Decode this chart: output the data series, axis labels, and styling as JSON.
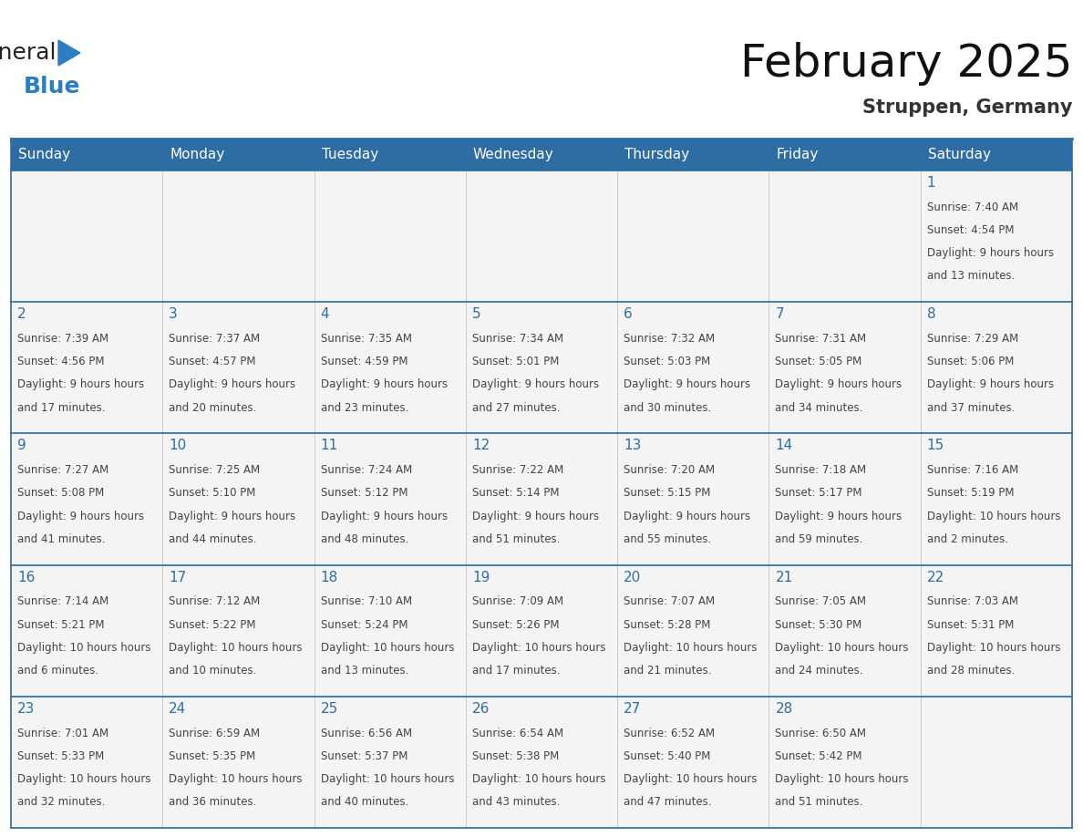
{
  "title": "February 2025",
  "subtitle": "Struppen, Germany",
  "header_bg": "#2E6DA4",
  "header_text_color": "#FFFFFF",
  "cell_bg": "#F4F4F4",
  "day_number_color": "#2E6DA4",
  "text_color": "#444444",
  "border_color": "#2E6DA4",
  "thin_border_color": "#BBBBBB",
  "days_of_week": [
    "Sunday",
    "Monday",
    "Tuesday",
    "Wednesday",
    "Thursday",
    "Friday",
    "Saturday"
  ],
  "logo_general_color": "#222222",
  "logo_blue_color": "#2B7EC1",
  "title_fontsize": 36,
  "subtitle_fontsize": 15,
  "header_fontsize": 11,
  "day_num_fontsize": 11,
  "cell_fontsize": 8.5,
  "weeks": [
    [
      {
        "day": null,
        "data": null
      },
      {
        "day": null,
        "data": null
      },
      {
        "day": null,
        "data": null
      },
      {
        "day": null,
        "data": null
      },
      {
        "day": null,
        "data": null
      },
      {
        "day": null,
        "data": null
      },
      {
        "day": 1,
        "data": {
          "sunrise": "7:40 AM",
          "sunset": "4:54 PM",
          "daylight": "9 hours and 13 minutes."
        }
      }
    ],
    [
      {
        "day": 2,
        "data": {
          "sunrise": "7:39 AM",
          "sunset": "4:56 PM",
          "daylight": "9 hours and 17 minutes."
        }
      },
      {
        "day": 3,
        "data": {
          "sunrise": "7:37 AM",
          "sunset": "4:57 PM",
          "daylight": "9 hours and 20 minutes."
        }
      },
      {
        "day": 4,
        "data": {
          "sunrise": "7:35 AM",
          "sunset": "4:59 PM",
          "daylight": "9 hours and 23 minutes."
        }
      },
      {
        "day": 5,
        "data": {
          "sunrise": "7:34 AM",
          "sunset": "5:01 PM",
          "daylight": "9 hours and 27 minutes."
        }
      },
      {
        "day": 6,
        "data": {
          "sunrise": "7:32 AM",
          "sunset": "5:03 PM",
          "daylight": "9 hours and 30 minutes."
        }
      },
      {
        "day": 7,
        "data": {
          "sunrise": "7:31 AM",
          "sunset": "5:05 PM",
          "daylight": "9 hours and 34 minutes."
        }
      },
      {
        "day": 8,
        "data": {
          "sunrise": "7:29 AM",
          "sunset": "5:06 PM",
          "daylight": "9 hours and 37 minutes."
        }
      }
    ],
    [
      {
        "day": 9,
        "data": {
          "sunrise": "7:27 AM",
          "sunset": "5:08 PM",
          "daylight": "9 hours and 41 minutes."
        }
      },
      {
        "day": 10,
        "data": {
          "sunrise": "7:25 AM",
          "sunset": "5:10 PM",
          "daylight": "9 hours and 44 minutes."
        }
      },
      {
        "day": 11,
        "data": {
          "sunrise": "7:24 AM",
          "sunset": "5:12 PM",
          "daylight": "9 hours and 48 minutes."
        }
      },
      {
        "day": 12,
        "data": {
          "sunrise": "7:22 AM",
          "sunset": "5:14 PM",
          "daylight": "9 hours and 51 minutes."
        }
      },
      {
        "day": 13,
        "data": {
          "sunrise": "7:20 AM",
          "sunset": "5:15 PM",
          "daylight": "9 hours and 55 minutes."
        }
      },
      {
        "day": 14,
        "data": {
          "sunrise": "7:18 AM",
          "sunset": "5:17 PM",
          "daylight": "9 hours and 59 minutes."
        }
      },
      {
        "day": 15,
        "data": {
          "sunrise": "7:16 AM",
          "sunset": "5:19 PM",
          "daylight": "10 hours and 2 minutes."
        }
      }
    ],
    [
      {
        "day": 16,
        "data": {
          "sunrise": "7:14 AM",
          "sunset": "5:21 PM",
          "daylight": "10 hours and 6 minutes."
        }
      },
      {
        "day": 17,
        "data": {
          "sunrise": "7:12 AM",
          "sunset": "5:22 PM",
          "daylight": "10 hours and 10 minutes."
        }
      },
      {
        "day": 18,
        "data": {
          "sunrise": "7:10 AM",
          "sunset": "5:24 PM",
          "daylight": "10 hours and 13 minutes."
        }
      },
      {
        "day": 19,
        "data": {
          "sunrise": "7:09 AM",
          "sunset": "5:26 PM",
          "daylight": "10 hours and 17 minutes."
        }
      },
      {
        "day": 20,
        "data": {
          "sunrise": "7:07 AM",
          "sunset": "5:28 PM",
          "daylight": "10 hours and 21 minutes."
        }
      },
      {
        "day": 21,
        "data": {
          "sunrise": "7:05 AM",
          "sunset": "5:30 PM",
          "daylight": "10 hours and 24 minutes."
        }
      },
      {
        "day": 22,
        "data": {
          "sunrise": "7:03 AM",
          "sunset": "5:31 PM",
          "daylight": "10 hours and 28 minutes."
        }
      }
    ],
    [
      {
        "day": 23,
        "data": {
          "sunrise": "7:01 AM",
          "sunset": "5:33 PM",
          "daylight": "10 hours and 32 minutes."
        }
      },
      {
        "day": 24,
        "data": {
          "sunrise": "6:59 AM",
          "sunset": "5:35 PM",
          "daylight": "10 hours and 36 minutes."
        }
      },
      {
        "day": 25,
        "data": {
          "sunrise": "6:56 AM",
          "sunset": "5:37 PM",
          "daylight": "10 hours and 40 minutes."
        }
      },
      {
        "day": 26,
        "data": {
          "sunrise": "6:54 AM",
          "sunset": "5:38 PM",
          "daylight": "10 hours and 43 minutes."
        }
      },
      {
        "day": 27,
        "data": {
          "sunrise": "6:52 AM",
          "sunset": "5:40 PM",
          "daylight": "10 hours and 47 minutes."
        }
      },
      {
        "day": 28,
        "data": {
          "sunrise": "6:50 AM",
          "sunset": "5:42 PM",
          "daylight": "10 hours and 51 minutes."
        }
      },
      {
        "day": null,
        "data": null
      }
    ]
  ]
}
